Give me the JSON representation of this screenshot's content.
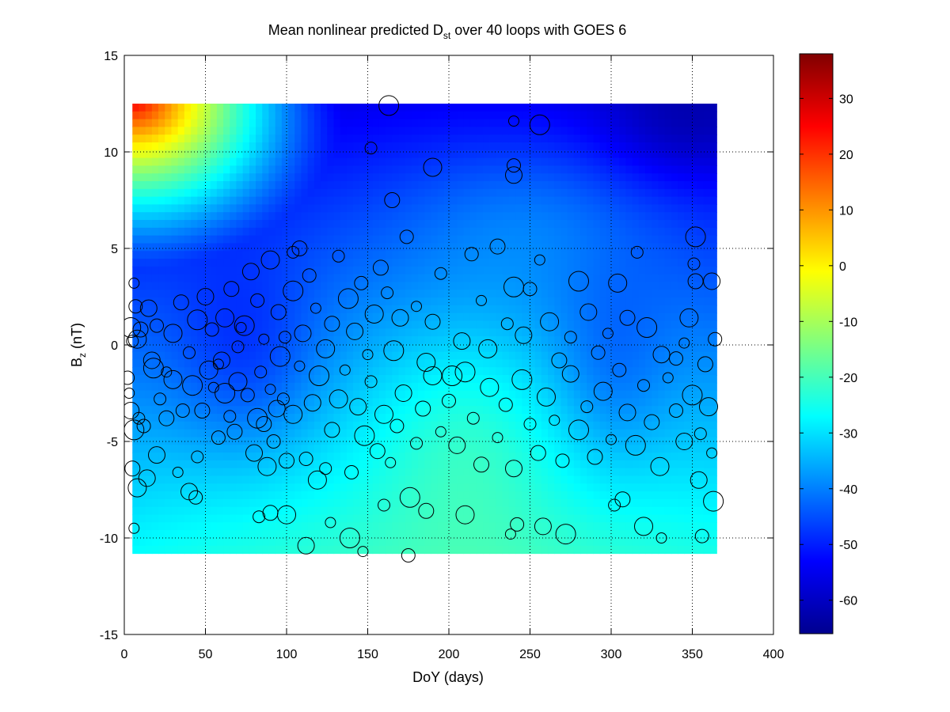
{
  "chart_data": [
    {
      "type": "heatmap",
      "title": "Mean nonlinear predicted D",
      "title_subscript": "st",
      "title_suffix": " over 40 loops with GOES 6",
      "xlabel": "DoY (days)",
      "ylabel": "B",
      "ylabel_subscript": "z",
      "ylabel_suffix": " (nT)",
      "xlim": [
        0,
        400
      ],
      "ylim": [
        -15,
        15
      ],
      "xticks": [
        0,
        50,
        100,
        150,
        200,
        250,
        300,
        350,
        400
      ],
      "xtick_labels": [
        "0",
        "50",
        "100",
        "150",
        "200",
        "250",
        "300",
        "350",
        "400"
      ],
      "yticks": [
        -15,
        -10,
        -5,
        0,
        5,
        10,
        15
      ],
      "ytick_labels": [
        "-15",
        "-10",
        "-5",
        "0",
        "5",
        "10",
        "15"
      ],
      "grid": true,
      "grid_style": "dotted",
      "colormap": "jet",
      "field_extent": {
        "x": [
          5,
          365
        ],
        "y": [
          -10.8,
          12.5
        ]
      },
      "colorbar": {
        "clim": [
          -66,
          38
        ],
        "ticks": [
          30,
          20,
          10,
          0,
          -10,
          -20,
          -30,
          -40,
          -50,
          -60
        ],
        "tick_labels": [
          "30",
          "20",
          "10",
          "0",
          "-10",
          "-20",
          "-30",
          "-40",
          "-50",
          "-60"
        ]
      },
      "field_samples": [
        {
          "doy": 5,
          "bz": 12.5,
          "dst": 38
        },
        {
          "doy": 50,
          "bz": 12.5,
          "dst": 5
        },
        {
          "doy": 100,
          "bz": 12.5,
          "dst": -22
        },
        {
          "doy": 200,
          "bz": 12.5,
          "dst": -44
        },
        {
          "doy": 365,
          "bz": 12.5,
          "dst": -66
        },
        {
          "doy": 5,
          "bz": 5,
          "dst": 0
        },
        {
          "doy": 60,
          "bz": 0,
          "dst": -50
        },
        {
          "doy": 200,
          "bz": 0,
          "dst": -36
        },
        {
          "doy": 300,
          "bz": -5,
          "dst": -40
        },
        {
          "doy": 250,
          "bz": -10,
          "dst": -30
        }
      ],
      "scatter": {
        "marker": "open-circle",
        "points": [
          [
            6,
            3.2
          ],
          [
            7,
            2.0
          ],
          [
            15,
            1.9
          ],
          [
            4,
            0.9
          ],
          [
            5,
            0.2
          ],
          [
            10,
            0.8
          ],
          [
            8,
            0.3
          ],
          [
            3,
            -2.5
          ],
          [
            2,
            -1.7
          ],
          [
            4,
            -3.4
          ],
          [
            6,
            -4.4
          ],
          [
            9,
            -3.8
          ],
          [
            5,
            -6.4
          ],
          [
            8,
            -7.4
          ],
          [
            6,
            -9.5
          ],
          [
            12,
            -4.2
          ],
          [
            14,
            -6.9
          ],
          [
            18,
            -1.2
          ],
          [
            22,
            -2.8
          ],
          [
            26,
            -3.8
          ],
          [
            30,
            -1.8
          ],
          [
            33,
            -6.6
          ],
          [
            36,
            -3.4
          ],
          [
            40,
            -7.6
          ],
          [
            42,
            -2.1
          ],
          [
            45,
            -5.8
          ],
          [
            48,
            -3.4
          ],
          [
            52,
            -1.3
          ],
          [
            55,
            -2.2
          ],
          [
            58,
            -4.8
          ],
          [
            60,
            -0.8
          ],
          [
            62,
            -2.5
          ],
          [
            65,
            -3.7
          ],
          [
            68,
            -4.5
          ],
          [
            70,
            -1.9
          ],
          [
            72,
            0.9
          ],
          [
            76,
            -2.6
          ],
          [
            80,
            -5.6
          ],
          [
            82,
            -3.8
          ],
          [
            84,
            -1.4
          ],
          [
            86,
            -4.1
          ],
          [
            88,
            -6.3
          ],
          [
            90,
            -2.3
          ],
          [
            92,
            -5.0
          ],
          [
            94,
            -3.3
          ],
          [
            96,
            -0.6
          ],
          [
            98,
            -2.8
          ],
          [
            100,
            -6.0
          ],
          [
            104,
            -3.6
          ],
          [
            108,
            -1.1
          ],
          [
            112,
            -5.9
          ],
          [
            116,
            -3.0
          ],
          [
            120,
            -1.6
          ],
          [
            124,
            -6.4
          ],
          [
            128,
            -4.4
          ],
          [
            132,
            -2.8
          ],
          [
            136,
            -1.3
          ],
          [
            140,
            -6.6
          ],
          [
            144,
            -3.2
          ],
          [
            148,
            -4.7
          ],
          [
            152,
            -1.9
          ],
          [
            156,
            -5.5
          ],
          [
            160,
            -3.6
          ],
          [
            164,
            -6.1
          ],
          [
            168,
            -4.2
          ],
          [
            172,
            -2.5
          ],
          [
            176,
            -7.9
          ],
          [
            180,
            -5.1
          ],
          [
            184,
            -3.3
          ],
          [
            190,
            -1.6
          ],
          [
            195,
            -4.5
          ],
          [
            200,
            -2.9
          ],
          [
            205,
            -5.2
          ],
          [
            210,
            -1.4
          ],
          [
            215,
            -3.8
          ],
          [
            220,
            -6.2
          ],
          [
            225,
            -2.2
          ],
          [
            230,
            -4.8
          ],
          [
            235,
            -3.1
          ],
          [
            240,
            -6.4
          ],
          [
            245,
            -1.8
          ],
          [
            250,
            -4.1
          ],
          [
            255,
            -5.6
          ],
          [
            260,
            -2.7
          ],
          [
            265,
            -3.9
          ],
          [
            270,
            -6.0
          ],
          [
            275,
            -1.5
          ],
          [
            280,
            -4.4
          ],
          [
            285,
            -3.2
          ],
          [
            290,
            -5.8
          ],
          [
            295,
            -2.4
          ],
          [
            300,
            -4.9
          ],
          [
            305,
            -1.3
          ],
          [
            310,
            -3.5
          ],
          [
            315,
            -5.2
          ],
          [
            320,
            -2.1
          ],
          [
            325,
            -4.0
          ],
          [
            330,
            -6.3
          ],
          [
            335,
            -1.7
          ],
          [
            340,
            -3.4
          ],
          [
            345,
            -5.0
          ],
          [
            350,
            -2.6
          ],
          [
            355,
            -4.6
          ],
          [
            358,
            -1.0
          ],
          [
            360,
            -3.2
          ],
          [
            362,
            -5.6
          ],
          [
            364,
            0.3
          ],
          [
            362,
            3.3
          ],
          [
            352,
            5.6
          ],
          [
            351,
            4.2
          ],
          [
            352,
            3.3
          ],
          [
            348,
            1.4
          ],
          [
            345,
            0.1
          ],
          [
            340,
            -0.7
          ],
          [
            331,
            -0.5
          ],
          [
            322,
            0.9
          ],
          [
            316,
            4.8
          ],
          [
            310,
            1.4
          ],
          [
            304,
            3.2
          ],
          [
            298,
            0.6
          ],
          [
            292,
            -0.4
          ],
          [
            286,
            1.7
          ],
          [
            280,
            3.3
          ],
          [
            275,
            0.4
          ],
          [
            268,
            -0.8
          ],
          [
            262,
            1.2
          ],
          [
            256,
            4.4
          ],
          [
            250,
            2.9
          ],
          [
            246,
            0.5
          ],
          [
            240,
            3.0
          ],
          [
            236,
            1.1
          ],
          [
            230,
            5.1
          ],
          [
            224,
            -0.2
          ],
          [
            220,
            2.3
          ],
          [
            214,
            4.7
          ],
          [
            208,
            0.2
          ],
          [
            202,
            -1.6
          ],
          [
            195,
            3.7
          ],
          [
            190,
            1.2
          ],
          [
            186,
            -0.9
          ],
          [
            180,
            2.0
          ],
          [
            174,
            5.6
          ],
          [
            170,
            1.4
          ],
          [
            166,
            -0.3
          ],
          [
            162,
            2.7
          ],
          [
            158,
            4.0
          ],
          [
            154,
            1.6
          ],
          [
            150,
            -0.5
          ],
          [
            146,
            3.2
          ],
          [
            142,
            0.7
          ],
          [
            138,
            2.4
          ],
          [
            132,
            4.6
          ],
          [
            128,
            1.1
          ],
          [
            124,
            -0.2
          ],
          [
            118,
            1.9
          ],
          [
            114,
            3.6
          ],
          [
            110,
            0.6
          ],
          [
            104,
            2.8
          ],
          [
            99,
            0.4
          ],
          [
            95,
            1.7
          ],
          [
            90,
            4.4
          ],
          [
            86,
            0.3
          ],
          [
            82,
            2.3
          ],
          [
            78,
            3.8
          ],
          [
            74,
            1.0
          ],
          [
            70,
            -0.1
          ],
          [
            66,
            2.9
          ],
          [
            62,
            1.4
          ],
          [
            58,
            -1.0
          ],
          [
            54,
            0.8
          ],
          [
            50,
            2.5
          ],
          [
            45,
            1.3
          ],
          [
            40,
            -0.4
          ],
          [
            35,
            2.2
          ],
          [
            30,
            0.6
          ],
          [
            26,
            -1.4
          ],
          [
            20,
            1.0
          ],
          [
            17,
            -0.8
          ],
          [
            163,
            12.4
          ],
          [
            152,
            10.2
          ],
          [
            165,
            7.5
          ],
          [
            190,
            9.2
          ],
          [
            240,
            11.6
          ],
          [
            240,
            9.3
          ],
          [
            240,
            8.8
          ],
          [
            256,
            11.4
          ],
          [
            104,
            4.8
          ],
          [
            108,
            5.0
          ],
          [
            119,
            -7.0
          ],
          [
            147,
            -10.7
          ],
          [
            175,
            -10.9
          ],
          [
            112,
            -10.4
          ],
          [
            139,
            -10.0
          ],
          [
            160,
            -8.3
          ],
          [
            186,
            -8.6
          ],
          [
            210,
            -8.8
          ],
          [
            238,
            -9.8
          ],
          [
            242,
            -9.3
          ],
          [
            258,
            -9.4
          ],
          [
            272,
            -9.8
          ],
          [
            302,
            -8.3
          ],
          [
            307,
            -8.0
          ],
          [
            320,
            -9.4
          ],
          [
            331,
            -10.0
          ],
          [
            356,
            -9.9
          ],
          [
            354,
            -7.0
          ],
          [
            363,
            -8.1
          ],
          [
            83,
            -8.9
          ],
          [
            90,
            -8.7
          ],
          [
            100,
            -8.8
          ],
          [
            127,
            -9.2
          ],
          [
            44,
            -7.9
          ],
          [
            20,
            -5.7
          ]
        ]
      }
    }
  ]
}
